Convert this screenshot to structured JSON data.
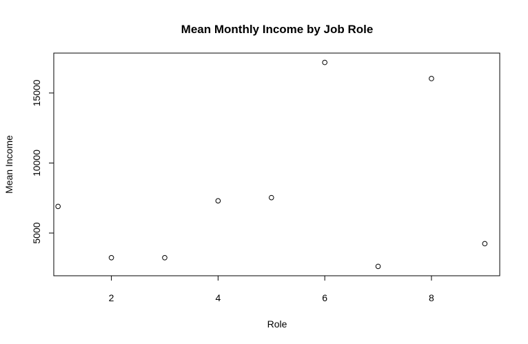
{
  "chart_data": {
    "type": "scatter",
    "title": "Mean Monthly Income by Job Role",
    "xlabel": "Role",
    "ylabel": "Mean Income",
    "x": [
      1,
      2,
      3,
      4,
      5,
      6,
      7,
      8,
      9
    ],
    "y": [
      6900,
      3240,
      3240,
      7300,
      7530,
      17180,
      2620,
      16030,
      4240
    ],
    "xlim": [
      0.92,
      9.28
    ],
    "ylim": [
      1950,
      17850
    ],
    "xticks": [
      2,
      4,
      6,
      8
    ],
    "yticks": [
      5000,
      10000,
      15000
    ],
    "grid": false,
    "legend": "none"
  }
}
